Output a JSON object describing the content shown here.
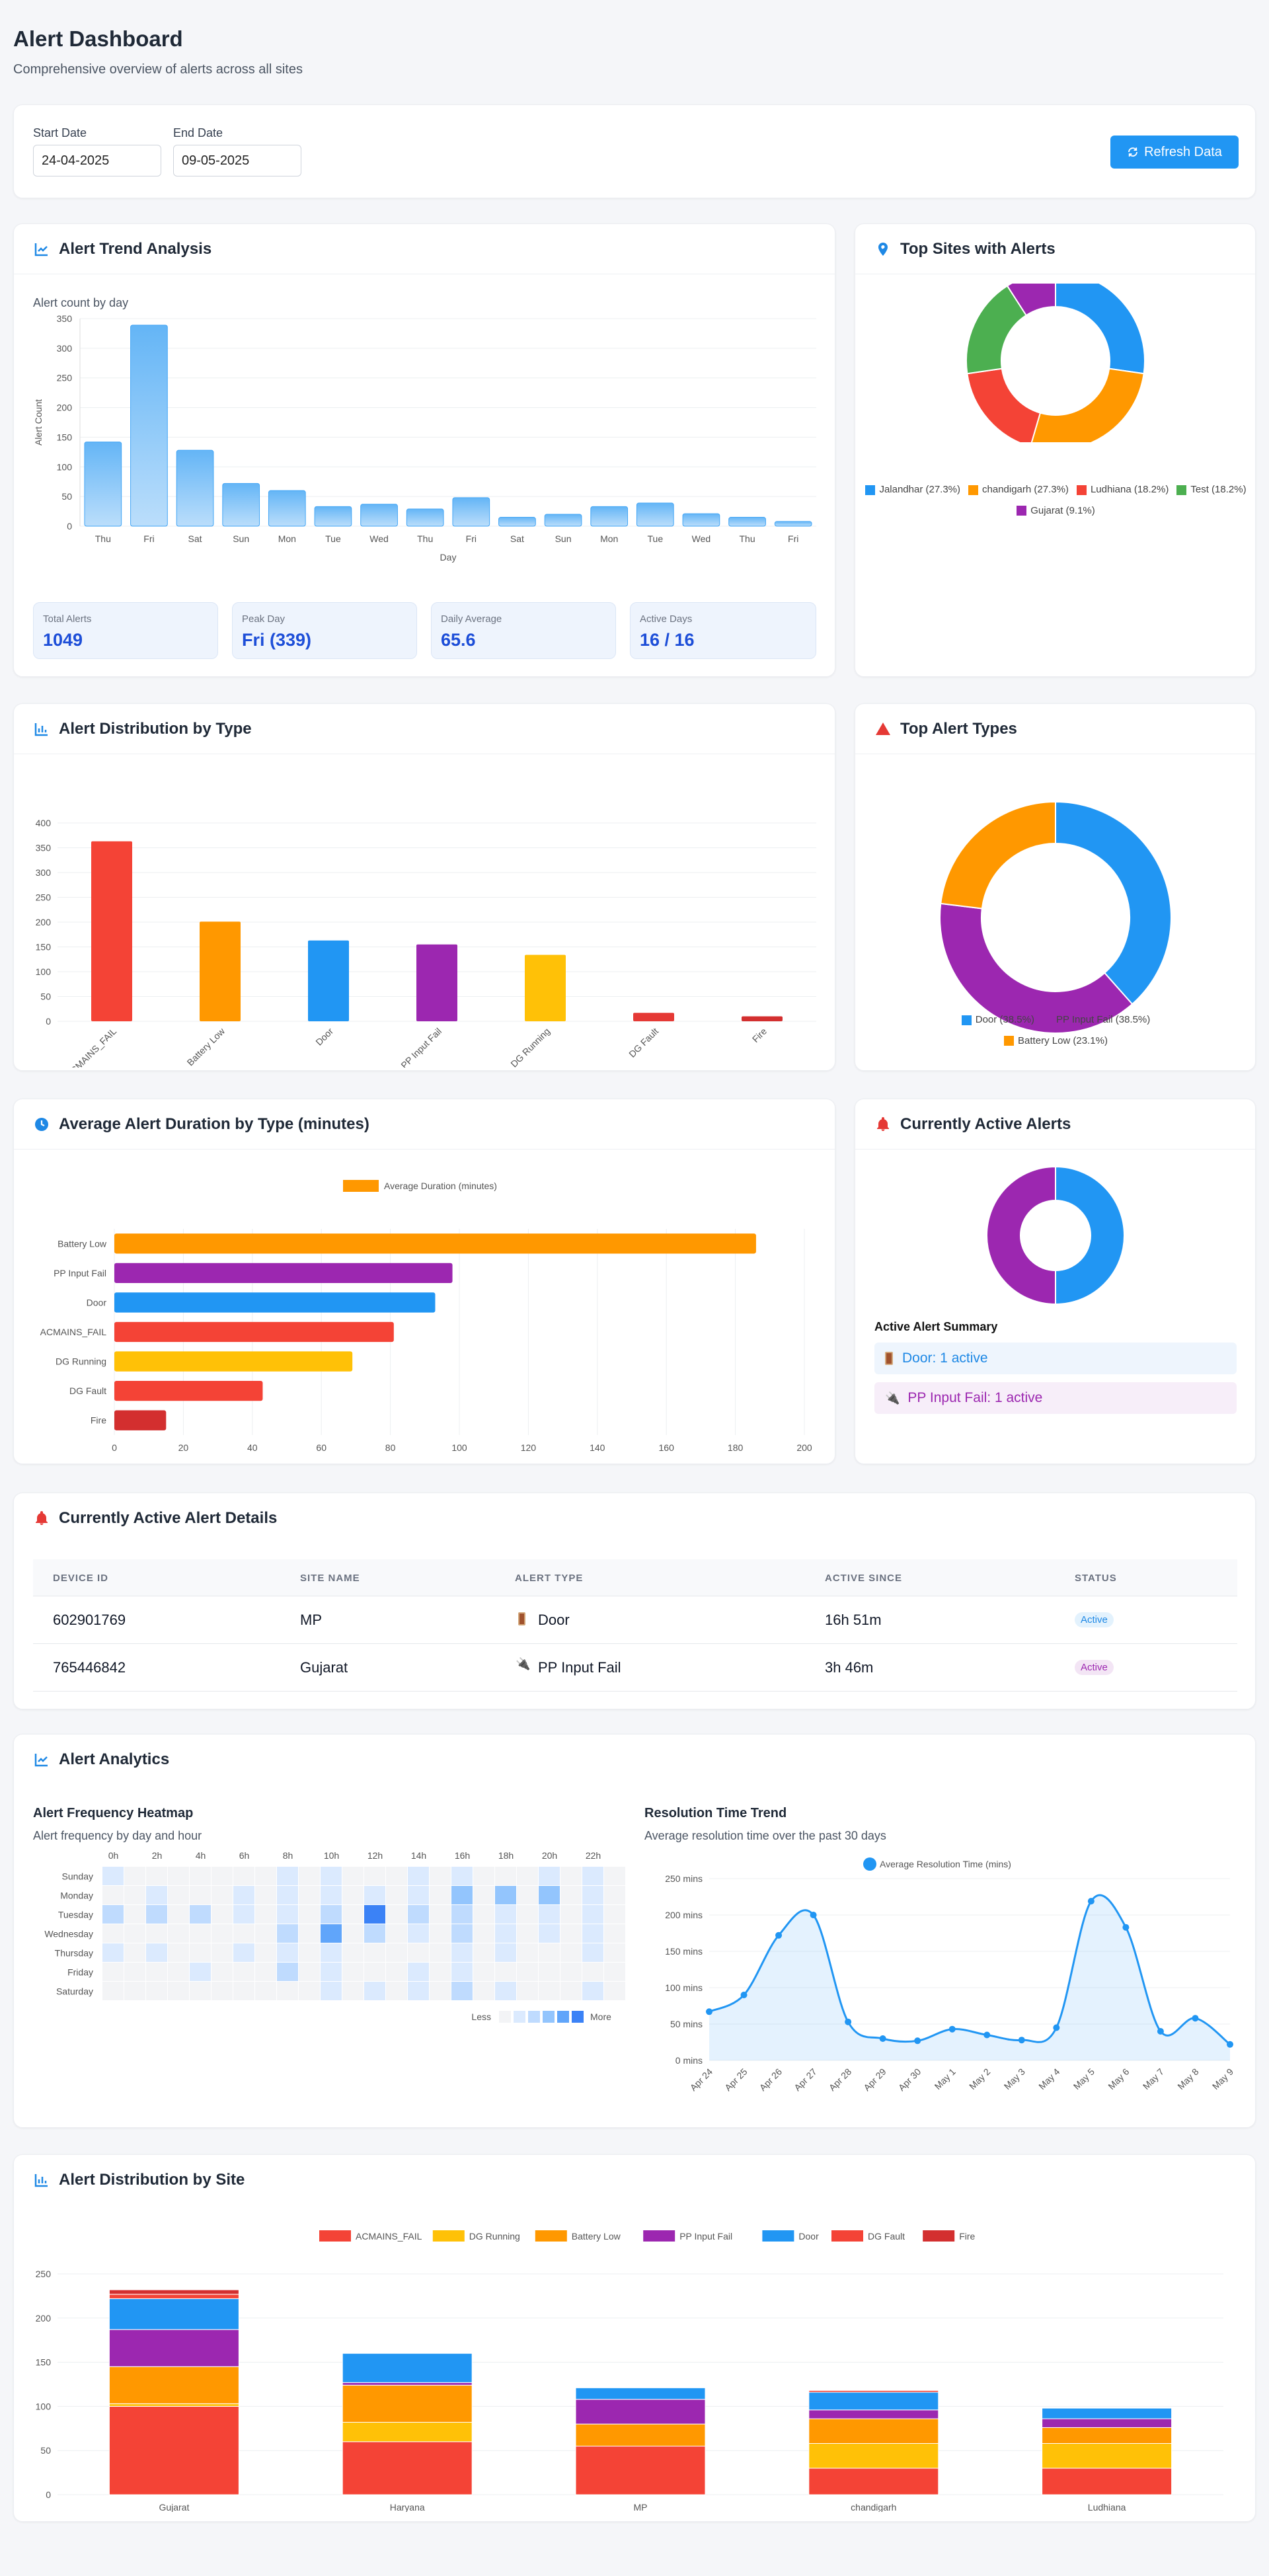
{
  "header": {
    "title": "Alert Dashboard",
    "subtitle": "Comprehensive overview of alerts across all sites"
  },
  "filters": {
    "start_label": "Start Date",
    "start_value": "24-04-2025",
    "end_label": "End Date",
    "end_value": "09-05-2025",
    "refresh_label": "Refresh Data"
  },
  "trend": {
    "title": "Alert Trend Analysis",
    "subtitle": "Alert count by day",
    "stats": [
      {
        "label": "Total Alerts",
        "value": "1049"
      },
      {
        "label": "Peak Day",
        "value": "Fri (339)"
      },
      {
        "label": "Daily Average",
        "value": "65.6"
      },
      {
        "label": "Active Days",
        "value": "16 / 16"
      }
    ]
  },
  "top_sites": {
    "title": "Top Sites with Alerts"
  },
  "distribution_type": {
    "title": "Alert Distribution by Type"
  },
  "top_types": {
    "title": "Top Alert Types"
  },
  "duration": {
    "title": "Average Alert Duration by Type (minutes)"
  },
  "active": {
    "title": "Currently Active Alerts",
    "summary_title": "Active Alert Summary",
    "summary": [
      {
        "label": "Door: 1 active",
        "color": "#1e88e5",
        "bg": "#eef5fd"
      },
      {
        "label": "PP Input Fail: 1 active",
        "color": "#9c27b0",
        "bg": "#f7eef9"
      }
    ]
  },
  "details": {
    "title": "Currently Active Alert Details",
    "columns": [
      "DEVICE ID",
      "SITE NAME",
      "ALERT TYPE",
      "ACTIVE SINCE",
      "STATUS"
    ],
    "rows": [
      {
        "device": "602901769",
        "site": "MP",
        "type": "Door",
        "since": "16h 51m",
        "status": "Active"
      },
      {
        "device": "765446842",
        "site": "Gujarat",
        "type": "PP Input Fail",
        "since": "3h 46m",
        "status": "Active"
      }
    ]
  },
  "analytics": {
    "title": "Alert Analytics",
    "heatmap_title": "Alert Frequency Heatmap",
    "heatmap_subtitle": "Alert frequency by day and hour",
    "hours": [
      "0h",
      "2h",
      "4h",
      "6h",
      "8h",
      "10h",
      "12h",
      "14h",
      "16h",
      "18h",
      "20h",
      "22h"
    ],
    "days": [
      "Sunday",
      "Monday",
      "Tuesday",
      "Wednesday",
      "Thursday",
      "Friday",
      "Saturday"
    ],
    "legend_less": "Less",
    "legend_more": "More",
    "heat": [
      [
        1,
        0,
        0,
        0,
        0,
        0,
        0,
        0,
        1,
        0,
        1,
        0,
        0,
        0,
        1,
        0,
        1,
        0,
        0,
        0,
        1,
        0,
        1,
        0
      ],
      [
        0,
        0,
        1,
        0,
        0,
        0,
        1,
        0,
        1,
        0,
        1,
        0,
        1,
        0,
        1,
        0,
        3,
        0,
        3,
        0,
        3,
        0,
        1,
        0
      ],
      [
        2,
        0,
        2,
        0,
        2,
        0,
        1,
        0,
        1,
        0,
        2,
        0,
        5,
        0,
        2,
        0,
        2,
        0,
        1,
        0,
        1,
        0,
        1,
        0
      ],
      [
        0,
        0,
        0,
        0,
        0,
        0,
        0,
        0,
        2,
        0,
        4,
        0,
        2,
        0,
        1,
        0,
        2,
        0,
        1,
        0,
        1,
        0,
        1,
        0
      ],
      [
        1,
        0,
        1,
        0,
        0,
        0,
        1,
        0,
        1,
        0,
        1,
        0,
        0,
        0,
        0,
        0,
        1,
        0,
        1,
        0,
        0,
        0,
        1,
        0
      ],
      [
        0,
        0,
        0,
        0,
        1,
        0,
        0,
        0,
        2,
        0,
        1,
        0,
        0,
        0,
        1,
        0,
        1,
        0,
        0,
        0,
        0,
        0,
        0,
        0
      ],
      [
        0,
        0,
        0,
        0,
        0,
        0,
        0,
        0,
        0,
        0,
        1,
        0,
        1,
        0,
        1,
        0,
        2,
        0,
        1,
        0,
        0,
        0,
        1,
        0
      ]
    ],
    "resolution_title": "Resolution Time Trend",
    "resolution_subtitle": "Average resolution time over the past 30 days"
  },
  "site_distribution": {
    "title": "Alert Distribution by Site"
  },
  "chart_data": [
    {
      "id": "trend",
      "type": "bar",
      "title": "Alert count by day",
      "xlabel": "Day",
      "ylabel": "Alert Count",
      "ylim": [
        0,
        350
      ],
      "yticks": [
        0,
        50,
        100,
        150,
        200,
        250,
        300,
        350
      ],
      "categories": [
        "Thu",
        "Fri",
        "Sat",
        "Sun",
        "Mon",
        "Tue",
        "Wed",
        "Thu",
        "Fri",
        "Sat",
        "Sun",
        "Mon",
        "Tue",
        "Wed",
        "Thu",
        "Fri"
      ],
      "values": [
        142,
        339,
        128,
        72,
        60,
        33,
        37,
        29,
        48,
        15,
        20,
        33,
        39,
        21,
        15,
        8
      ]
    },
    {
      "id": "top_sites",
      "type": "pie",
      "labels": [
        "Jalandhar (27.3%)",
        "chandigarh (27.3%)",
        "Ludhiana (18.2%)",
        "Test (18.2%)",
        "Gujarat (9.1%)"
      ],
      "values": [
        27.3,
        27.3,
        18.2,
        18.2,
        9.1
      ],
      "colors": [
        "#2196f3",
        "#ff9800",
        "#f44336",
        "#4caf50",
        "#9c27b0"
      ]
    },
    {
      "id": "dist_type",
      "type": "bar",
      "ylim": [
        0,
        400
      ],
      "yticks": [
        0,
        50,
        100,
        150,
        200,
        250,
        300,
        350,
        400
      ],
      "categories": [
        "ACMAINS_FAIL",
        "Battery Low",
        "Door",
        "PP Input Fail",
        "DG Running",
        "DG Fault",
        "Fire"
      ],
      "values": [
        363,
        201,
        163,
        155,
        134,
        17,
        10
      ],
      "colors": [
        "#f44336",
        "#ff9800",
        "#2196f3",
        "#9c27b0",
        "#ffc107",
        "#e53935",
        "#d32f2f"
      ]
    },
    {
      "id": "top_types",
      "type": "pie",
      "labels": [
        "Door (38.5%)",
        "PP Input Fail (38.5%)",
        "Battery Low (23.1%)"
      ],
      "values": [
        38.5,
        38.5,
        23.1
      ],
      "colors": [
        "#2196f3",
        "#9c27b0",
        "#ff9800"
      ]
    },
    {
      "id": "duration",
      "type": "bar",
      "orientation": "horizontal",
      "legend": "Average Duration (minutes)",
      "xlim": [
        0,
        200
      ],
      "xticks": [
        0,
        20,
        40,
        60,
        80,
        100,
        120,
        140,
        160,
        180,
        200
      ],
      "categories": [
        "Battery Low",
        "PP Input Fail",
        "Door",
        "ACMAINS_FAIL",
        "DG Running",
        "DG Fault",
        "Fire"
      ],
      "values": [
        186,
        98,
        93,
        81,
        69,
        43,
        15
      ],
      "colors": [
        "#ff9800",
        "#9c27b0",
        "#2196f3",
        "#f44336",
        "#ffc107",
        "#f44336",
        "#d32f2f"
      ]
    },
    {
      "id": "active",
      "type": "pie",
      "labels": [
        "Door",
        "PP Input Fail"
      ],
      "values": [
        1,
        1
      ],
      "colors": [
        "#2196f3",
        "#9c27b0"
      ]
    },
    {
      "id": "resolution",
      "type": "line",
      "legend": "Average Resolution Time (mins)",
      "ylim": [
        0,
        250
      ],
      "yticks": [
        "0 mins",
        "50 mins",
        "100 mins",
        "150 mins",
        "200 mins",
        "250 mins"
      ],
      "x": [
        "Apr 24",
        "Apr 25",
        "Apr 26",
        "Apr 27",
        "Apr 28",
        "Apr 29",
        "Apr 30",
        "May 1",
        "May 2",
        "May 3",
        "May 4",
        "May 5",
        "May 6",
        "May 7",
        "May 8",
        "May 9"
      ],
      "values": [
        67,
        90,
        172,
        200,
        53,
        30,
        27,
        43,
        35,
        28,
        45,
        219,
        183,
        40,
        58,
        22
      ]
    },
    {
      "id": "site_dist",
      "type": "stacked-bar",
      "ylim": [
        0,
        250
      ],
      "yticks": [
        0,
        50,
        100,
        150,
        200,
        250
      ],
      "categories": [
        "Gujarat",
        "Haryana",
        "MP",
        "chandigarh",
        "Ludhiana"
      ],
      "series": [
        {
          "name": "ACMAINS_FAIL",
          "color": "#f44336",
          "values": [
            100,
            60,
            55,
            30,
            30
          ]
        },
        {
          "name": "DG Running",
          "color": "#ffc107",
          "values": [
            3,
            22,
            0,
            28,
            28
          ]
        },
        {
          "name": "Battery Low",
          "color": "#ff9800",
          "values": [
            42,
            42,
            25,
            28,
            18
          ]
        },
        {
          "name": "PP Input Fail",
          "color": "#9c27b0",
          "values": [
            42,
            3,
            28,
            10,
            10
          ]
        },
        {
          "name": "Door",
          "color": "#2196f3",
          "values": [
            35,
            33,
            13,
            20,
            12
          ]
        },
        {
          "name": "DG Fault",
          "color": "#f44336",
          "values": [
            5,
            0,
            0,
            2,
            0
          ]
        },
        {
          "name": "Fire",
          "color": "#d32f2f",
          "values": [
            5,
            0,
            0,
            0,
            0
          ]
        }
      ]
    }
  ]
}
